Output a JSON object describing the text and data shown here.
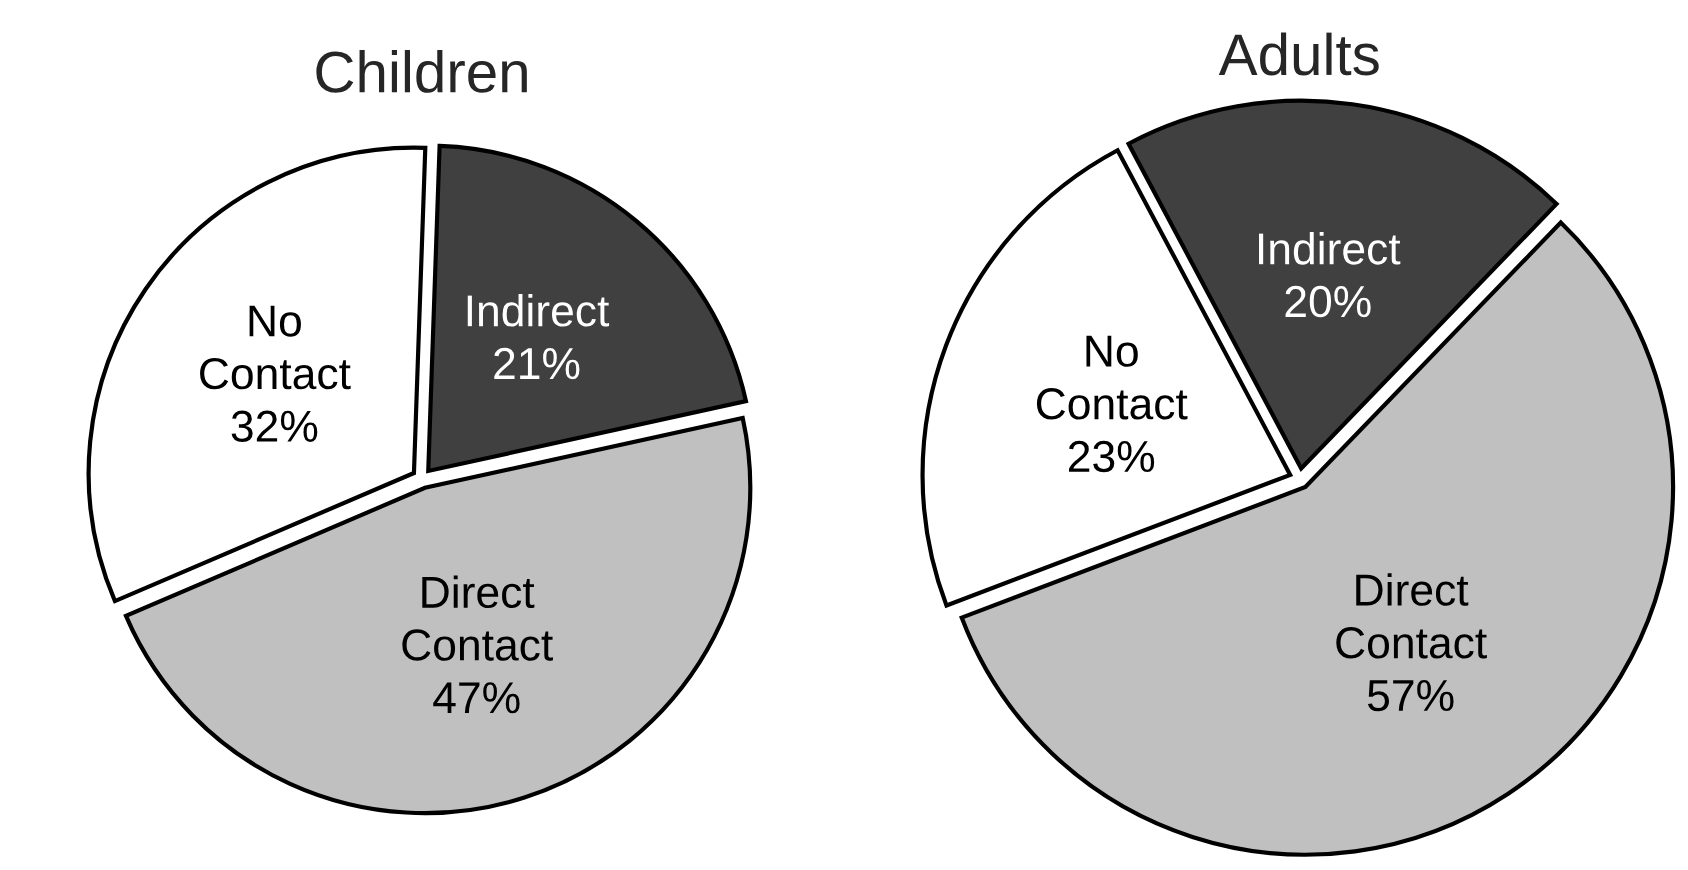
{
  "chart_data": [
    {
      "type": "pie",
      "title": "Children",
      "categories": [
        "Indirect",
        "Direct Contact",
        "No Contact"
      ],
      "values": [
        21,
        47,
        32
      ],
      "value_labels": [
        "21%",
        "47%",
        "32%"
      ],
      "colors": [
        "#404040",
        "#c0c0c0",
        "#ffffff"
      ]
    },
    {
      "type": "pie",
      "title": "Adults",
      "categories": [
        "Indirect",
        "Direct Contact",
        "No Contact"
      ],
      "values": [
        20,
        57,
        23
      ],
      "value_labels": [
        "20%",
        "57%",
        "23%"
      ],
      "colors": [
        "#404040",
        "#c0c0c0",
        "#ffffff"
      ]
    }
  ]
}
